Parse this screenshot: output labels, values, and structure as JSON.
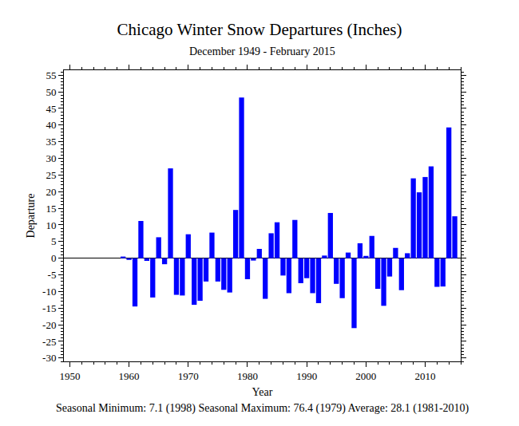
{
  "chart_data": {
    "type": "bar",
    "title": "Chicago Winter Snow Departures (Inches)",
    "subtitle": "December 1949 - February 2015",
    "xlabel": "Year",
    "ylabel": "Departure",
    "annotations": [
      "Seasonal Minimum: 7.1 (1998) Seasonal Maximum: 76.4 (1979) Average: 28.1 (1981-2010)"
    ],
    "x": [
      1959,
      1960,
      1961,
      1962,
      1963,
      1964,
      1965,
      1966,
      1967,
      1968,
      1969,
      1970,
      1971,
      1972,
      1973,
      1974,
      1975,
      1976,
      1977,
      1978,
      1979,
      1980,
      1981,
      1982,
      1983,
      1984,
      1985,
      1986,
      1987,
      1988,
      1989,
      1990,
      1991,
      1992,
      1993,
      1994,
      1995,
      1996,
      1997,
      1998,
      1999,
      2000,
      2001,
      2002,
      2003,
      2004,
      2005,
      2006,
      2007,
      2008,
      2009,
      2010,
      2011,
      2012,
      2013,
      2014,
      2015
    ],
    "values": [
      0.5,
      -0.5,
      -14.5,
      11.2,
      -0.8,
      -11.8,
      6.3,
      -1.8,
      27.0,
      -11.0,
      -11.2,
      7.2,
      -14.0,
      -12.8,
      -7.0,
      7.7,
      -7.0,
      -9.5,
      -10.3,
      14.5,
      48.3,
      -6.3,
      -0.7,
      2.8,
      -12.2,
      7.5,
      10.8,
      -5.2,
      -10.5,
      11.5,
      -7.5,
      -6.0,
      -10.5,
      -13.5,
      0.8,
      13.6,
      -7.7,
      -12.0,
      1.7,
      -21.0,
      4.5,
      0.7,
      6.7,
      -9.2,
      -14.3,
      -5.5,
      3.1,
      -9.6,
      1.5,
      24.0,
      19.8,
      24.4,
      27.6,
      -8.6,
      -8.5,
      39.3,
      12.6
    ],
    "color": "#0000ff",
    "xlim": [
      1949,
      2016
    ],
    "xticks": [
      1950,
      1960,
      1970,
      1980,
      1990,
      2000,
      2010
    ],
    "ylim": [
      -31,
      56.5
    ],
    "yticks": [
      -30,
      -25,
      -20,
      -15,
      -10,
      -5,
      0,
      5,
      10,
      15,
      20,
      25,
      30,
      35,
      40,
      45,
      50,
      55
    ],
    "grid": false
  }
}
